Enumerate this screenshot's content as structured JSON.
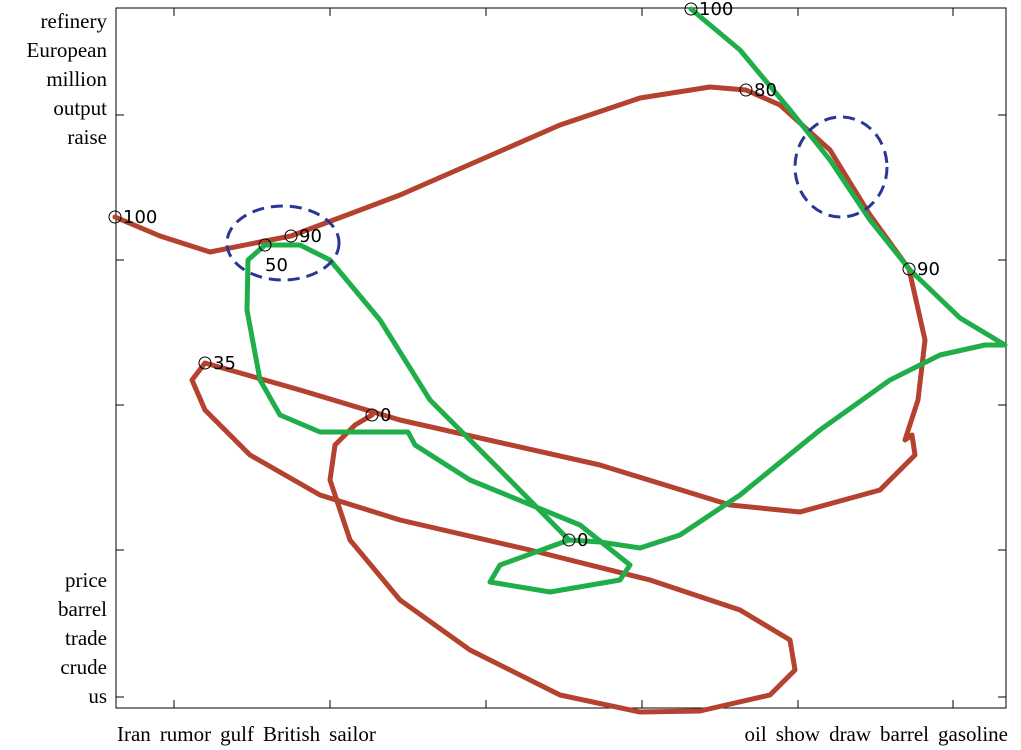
{
  "axis_words": {
    "y_top": [
      "refinery",
      "European",
      "million",
      "output",
      "raise"
    ],
    "y_bottom": [
      "price",
      "barrel",
      "trade",
      "crude",
      "us"
    ],
    "x_left": [
      "Iran",
      "rumor",
      "gulf",
      "British",
      "sailor"
    ],
    "x_right": [
      "oil",
      "show",
      "draw",
      "barrel",
      "gasoline"
    ]
  },
  "red_points": [
    100,
    90,
    80,
    90,
    35,
    0
  ],
  "green_points": [
    100,
    50,
    0
  ]
}
